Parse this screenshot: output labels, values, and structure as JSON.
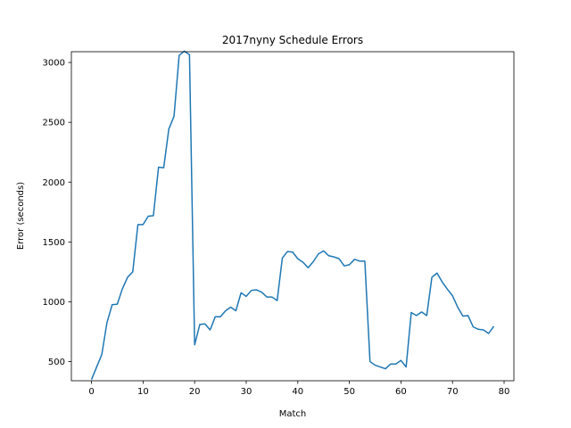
{
  "chart_data": {
    "type": "line",
    "title": "2017nyny Schedule Errors",
    "xlabel": "Match",
    "ylabel": "Error (seconds)",
    "xlim": [
      -3.9,
      81.9
    ],
    "ylim": [
      340,
      3090
    ],
    "xticks": [
      0,
      10,
      20,
      30,
      40,
      50,
      60,
      70,
      80
    ],
    "yticks": [
      500,
      1000,
      1500,
      2000,
      2500,
      3000
    ],
    "grid": false,
    "legend": "none",
    "series": [
      {
        "color": "#1f77b4",
        "x": [
          0,
          1,
          2,
          3,
          4,
          5,
          6,
          7,
          8,
          9,
          10,
          11,
          12,
          13,
          14,
          15,
          16,
          17,
          18,
          19,
          20,
          21,
          22,
          23,
          24,
          25,
          26,
          27,
          28,
          29,
          30,
          31,
          32,
          33,
          34,
          35,
          36,
          37,
          38,
          39,
          40,
          41,
          42,
          43,
          44,
          45,
          46,
          47,
          48,
          49,
          50,
          51,
          52,
          53,
          54,
          55,
          56,
          57,
          58,
          59,
          60,
          61,
          62,
          63,
          64,
          65,
          66,
          67,
          68,
          69,
          70,
          71,
          72,
          73,
          74,
          75,
          76,
          77,
          78
        ],
        "y": [
          350,
          455,
          560,
          825,
          975,
          980,
          1110,
          1205,
          1250,
          1645,
          1645,
          1715,
          1720,
          2125,
          2120,
          2445,
          2550,
          3060,
          3095,
          3065,
          640,
          810,
          815,
          765,
          875,
          875,
          925,
          955,
          925,
          1075,
          1045,
          1095,
          1100,
          1080,
          1040,
          1040,
          1010,
          1365,
          1420,
          1415,
          1360,
          1330,
          1285,
          1335,
          1400,
          1425,
          1385,
          1375,
          1360,
          1300,
          1310,
          1355,
          1340,
          1340,
          500,
          470,
          455,
          440,
          480,
          480,
          510,
          455,
          910,
          885,
          915,
          885,
          1205,
          1240,
          1165,
          1105,
          1050,
          955,
          880,
          885,
          790,
          770,
          765,
          735,
          795
        ]
      }
    ]
  }
}
